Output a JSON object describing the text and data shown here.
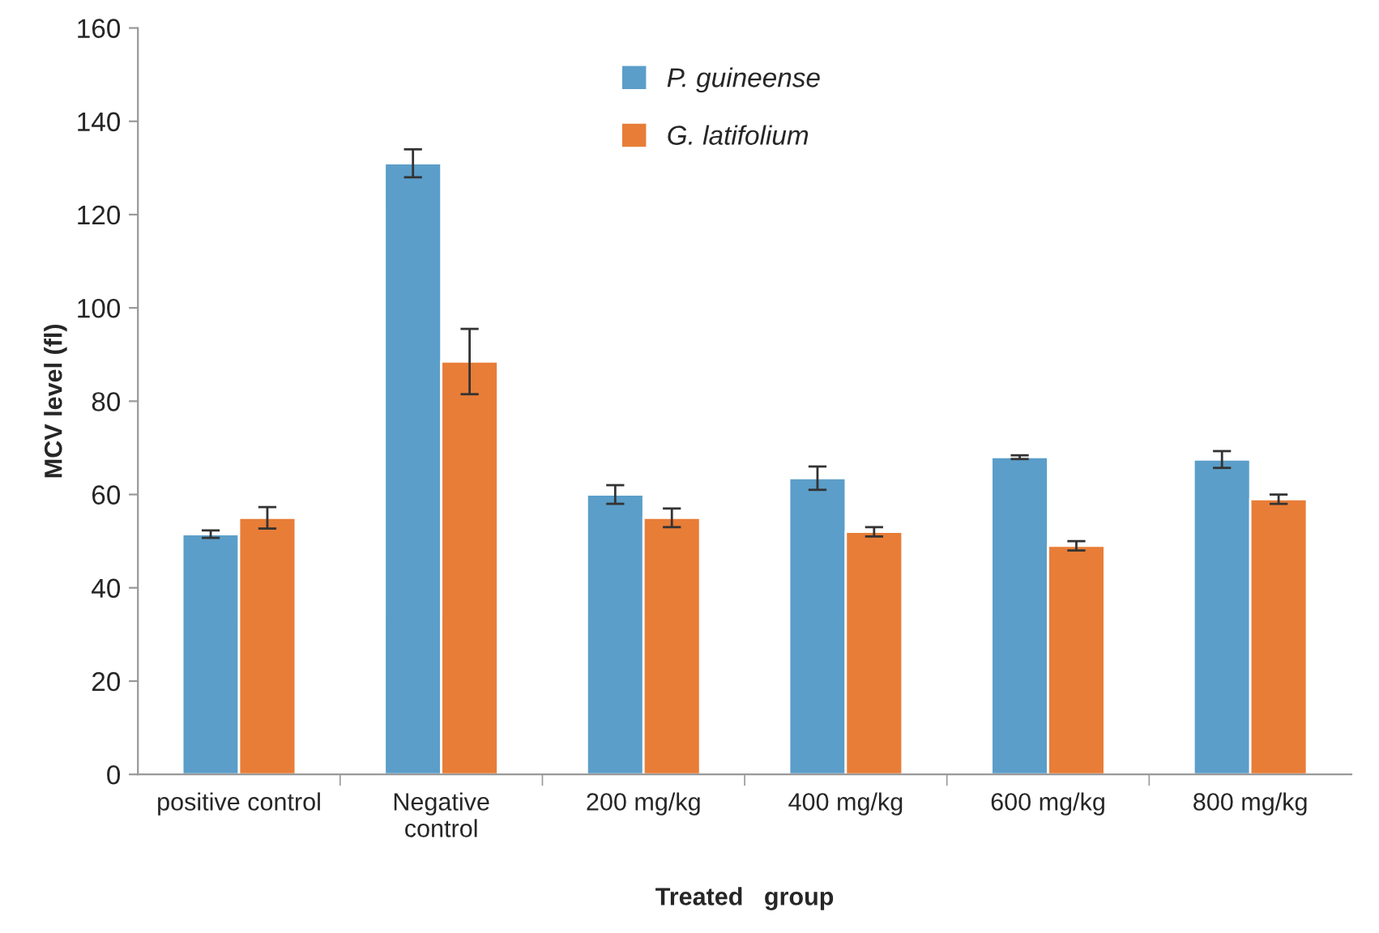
{
  "chart_data": {
    "type": "bar",
    "xlabel": "Treated   group",
    "ylabel": "MCV level (fl)",
    "categories": [
      "positive control",
      "Negative\ncontrol",
      "200 mg/kg",
      "400 mg/kg",
      "600 mg/kg",
      "800 mg/kg"
    ],
    "series": [
      {
        "name": "P. guineense",
        "color": "#5b9ec9",
        "values": [
          51.5,
          131,
          60,
          63.5,
          68,
          67.5
        ],
        "errors": [
          0.8,
          3,
          2,
          2.5,
          0.4,
          1.8
        ]
      },
      {
        "name": "G. latifolium",
        "color": "#e87d37",
        "values": [
          55,
          88.5,
          55,
          52,
          49,
          59
        ],
        "errors": [
          2.3,
          7,
          2,
          1,
          1,
          1
        ]
      }
    ],
    "ylim": [
      0,
      160
    ],
    "yticks": [
      0,
      20,
      40,
      60,
      80,
      100,
      120,
      140,
      160
    ],
    "grid": false,
    "legend": "top"
  }
}
